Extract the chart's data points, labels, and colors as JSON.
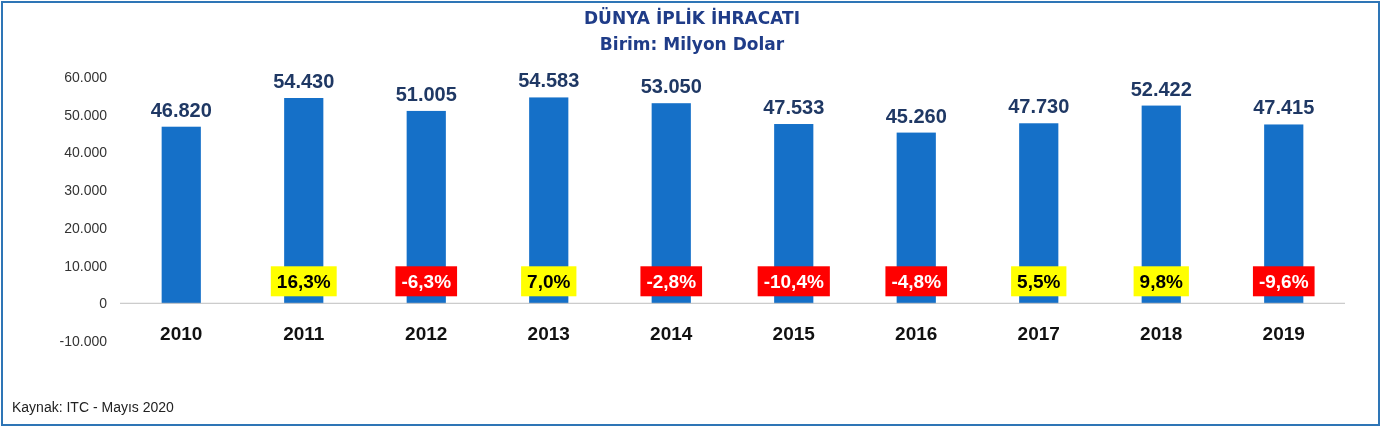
{
  "chart_data": {
    "type": "bar",
    "title": "DÜNYA İPLİK İHRACATI",
    "subtitle": "Birim: Milyon Dolar",
    "categories": [
      "2010",
      "2011",
      "2012",
      "2013",
      "2014",
      "2015",
      "2016",
      "2017",
      "2018",
      "2019"
    ],
    "values": [
      46820,
      54430,
      51005,
      54583,
      53050,
      47533,
      45260,
      47730,
      52422,
      47415
    ],
    "value_labels": [
      "46.820",
      "54.430",
      "51.005",
      "54.583",
      "53.050",
      "47.533",
      "45.260",
      "47.730",
      "52.422",
      "47.415"
    ],
    "color": "#1570c8",
    "ylim": [
      -10000,
      60000
    ],
    "yticks": [
      {
        "value": -10000,
        "label": "-10.000"
      },
      {
        "value": 0,
        "label": "0"
      },
      {
        "value": 10000,
        "label": "10.000"
      },
      {
        "value": 20000,
        "label": "20.000"
      },
      {
        "value": 30000,
        "label": "30.000"
      },
      {
        "value": 40000,
        "label": "40.000"
      },
      {
        "value": 50000,
        "label": "50.000"
      },
      {
        "value": 60000,
        "label": "60.000"
      }
    ],
    "grid": false,
    "annotations": [
      "16,3%",
      "-6,3%",
      "7,0%",
      "-2,8%",
      "-10,4%",
      "-4,8%",
      "5,5%",
      "9,8%",
      "-9,6%",
      "Kaynak: ITC - Mayıs 2020"
    ]
  }
}
